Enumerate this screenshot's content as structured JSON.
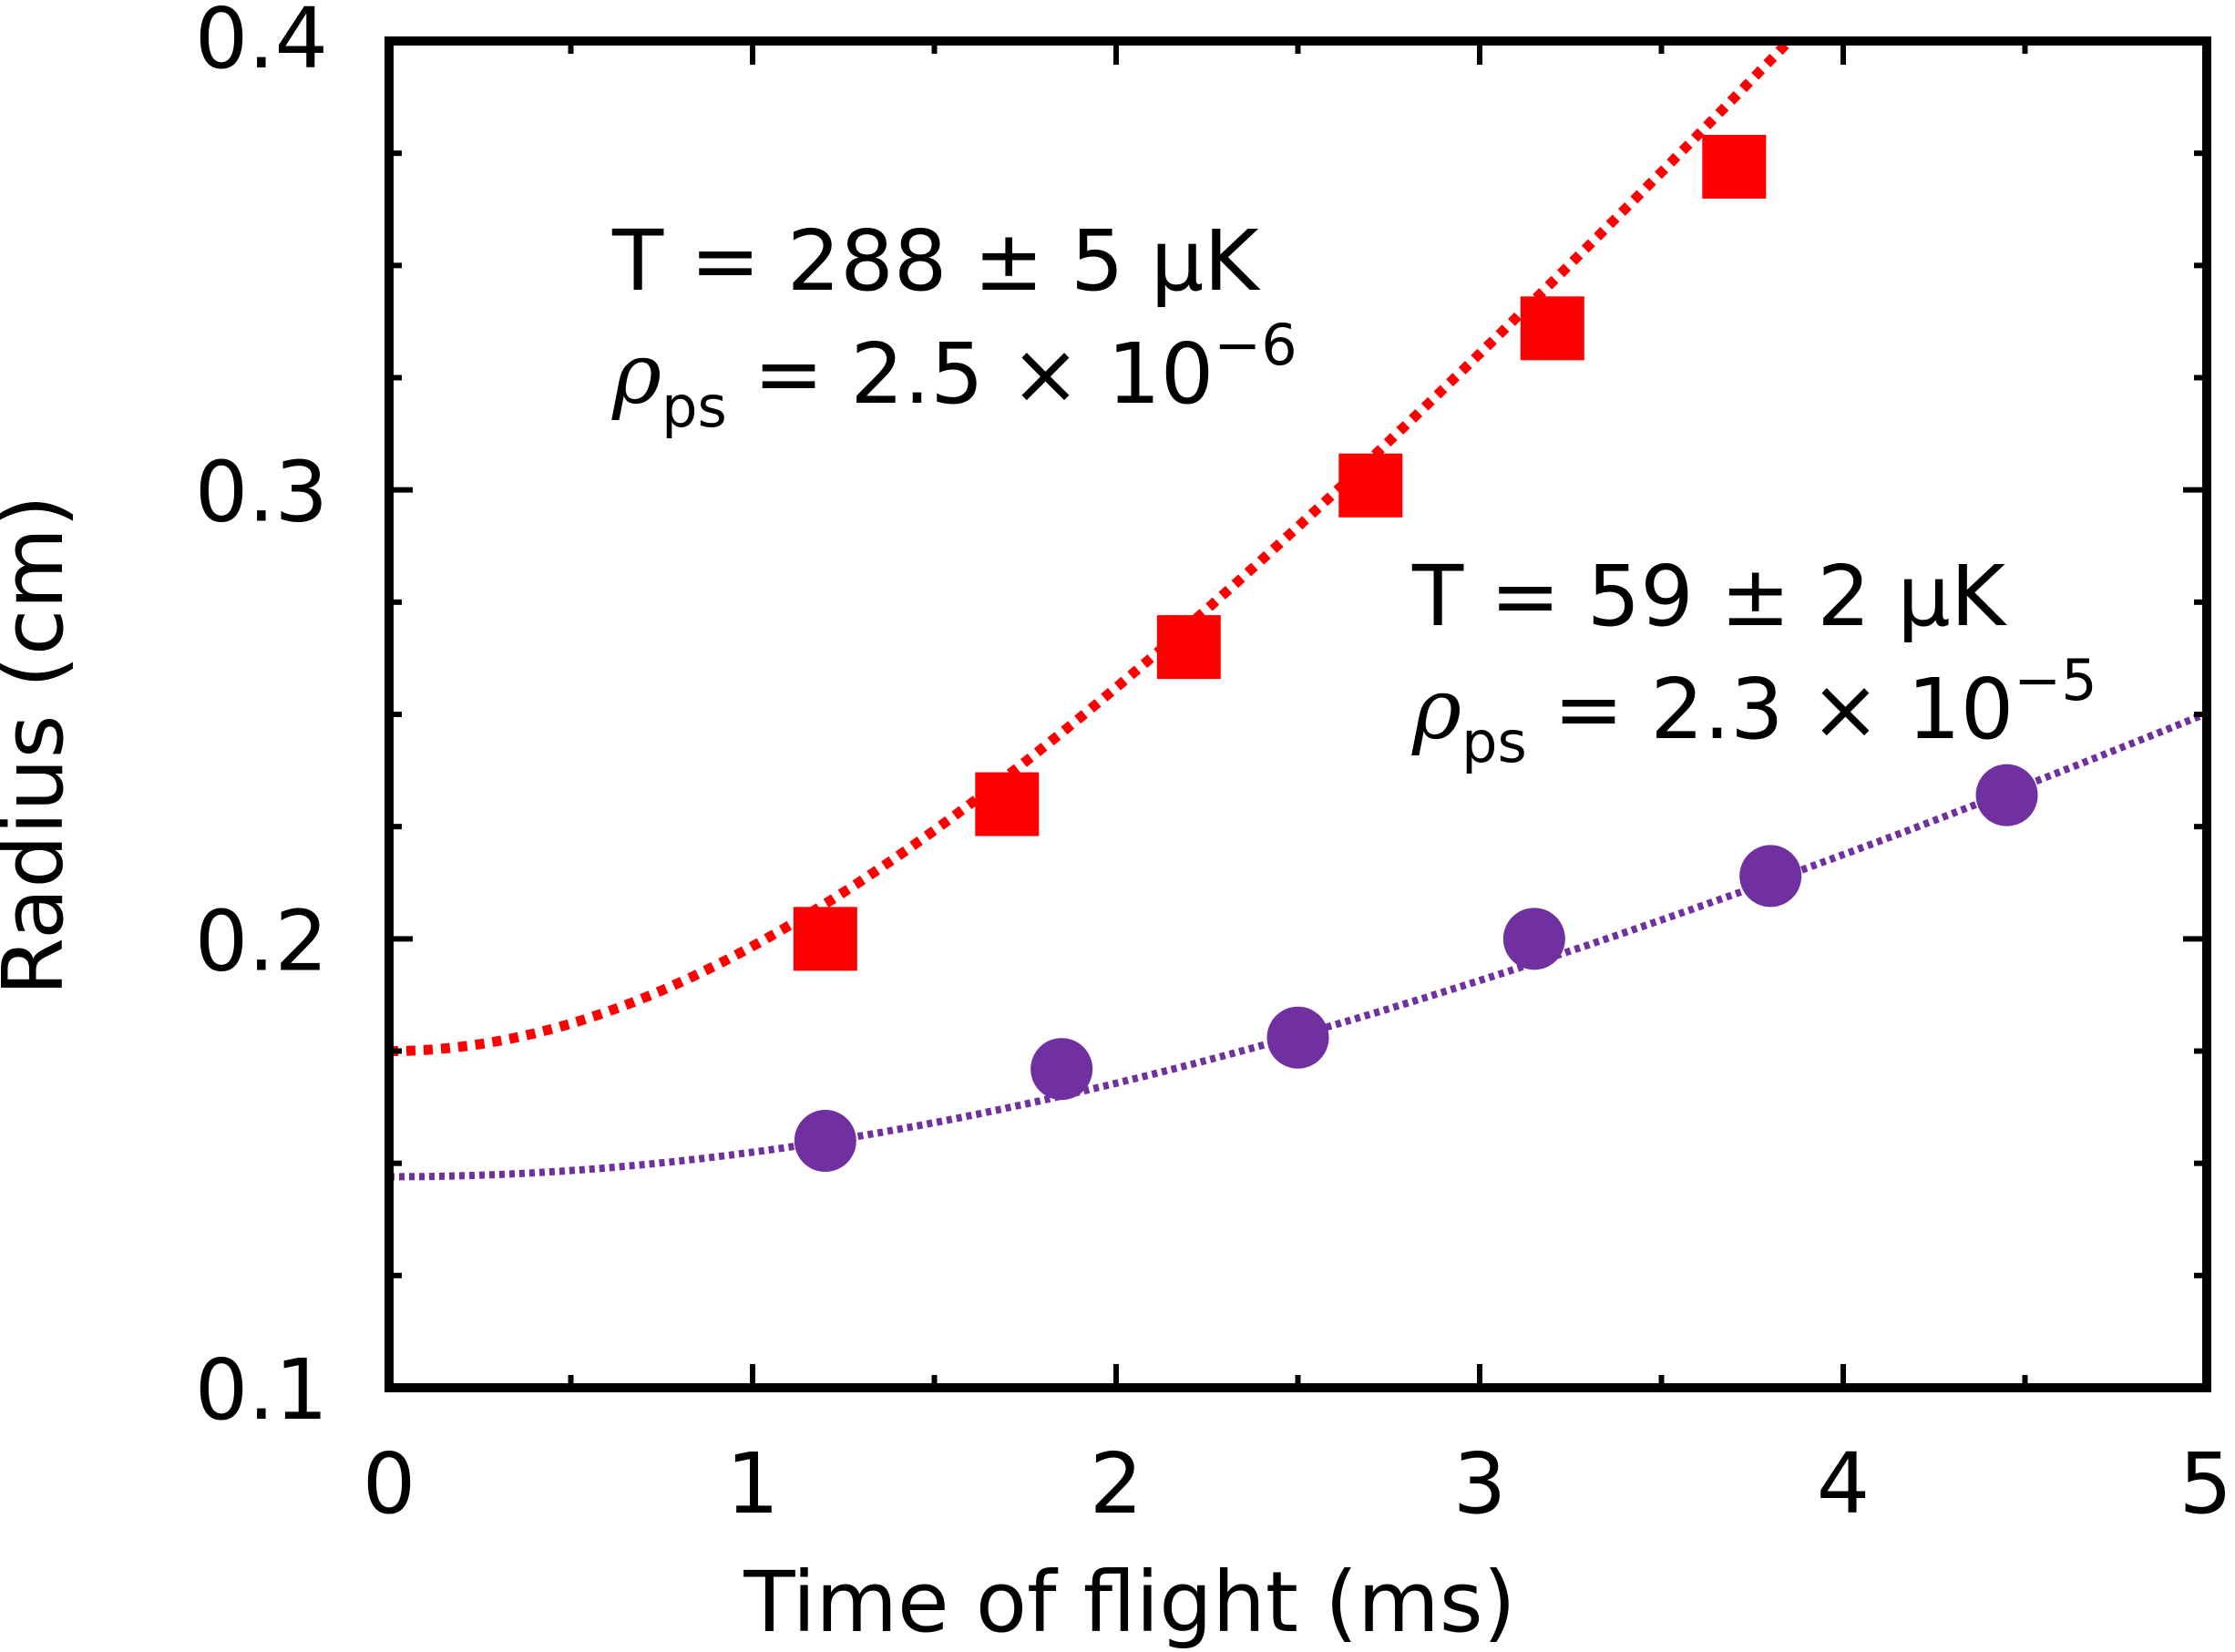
{
  "chart_data": {
    "type": "scatter",
    "xlabel": "Time of flight (ms)",
    "ylabel": "Radius (cm)",
    "xlim": [
      0,
      5
    ],
    "ylim": [
      0.1,
      0.4
    ],
    "x_ticks": [
      0,
      1,
      2,
      3,
      4,
      5
    ],
    "x_tick_labels": [
      "0",
      "1",
      "2",
      "3",
      "4",
      "5"
    ],
    "y_ticks": [
      0.1,
      0.2,
      0.3,
      0.4
    ],
    "y_tick_labels": [
      "0.1",
      "0.2",
      "0.3",
      "0.4"
    ],
    "x_minor_step": 0.5,
    "y_minor_step": 0.025,
    "grid": false,
    "legend": "none",
    "series": [
      {
        "marker": "square",
        "color": "#ff0000",
        "x": [
          1.2,
          1.7,
          2.2,
          2.7,
          3.2,
          3.7
        ],
        "y": [
          0.2,
          0.23,
          0.265,
          0.301,
          0.336,
          0.372
        ],
        "fit": {
          "style": "dotted",
          "color": "#ff0000",
          "r0": 0.175,
          "v": 0.0934
        }
      },
      {
        "marker": "circle",
        "color": "#7030a0",
        "x": [
          1.2,
          1.85,
          2.5,
          3.15,
          3.8,
          4.45
        ],
        "y": [
          0.155,
          0.171,
          0.178,
          0.2,
          0.214,
          0.232
        ],
        "fit": {
          "style": "dotted",
          "color": "#7030a0",
          "r0": 0.147,
          "v": 0.0405
        }
      }
    ],
    "annotations": [
      {
        "temperature": "T = 288 ± 5 μK",
        "rho_symbol": "ρ",
        "rho_subscript": "ps",
        "rho_value": " = 2.5 × 10",
        "rho_exponent": "−6"
      },
      {
        "temperature": "T = 59 ± 2 μK",
        "rho_symbol": "ρ",
        "rho_subscript": "ps",
        "rho_value": " = 2.3 × 10",
        "rho_exponent": "−5"
      }
    ]
  }
}
